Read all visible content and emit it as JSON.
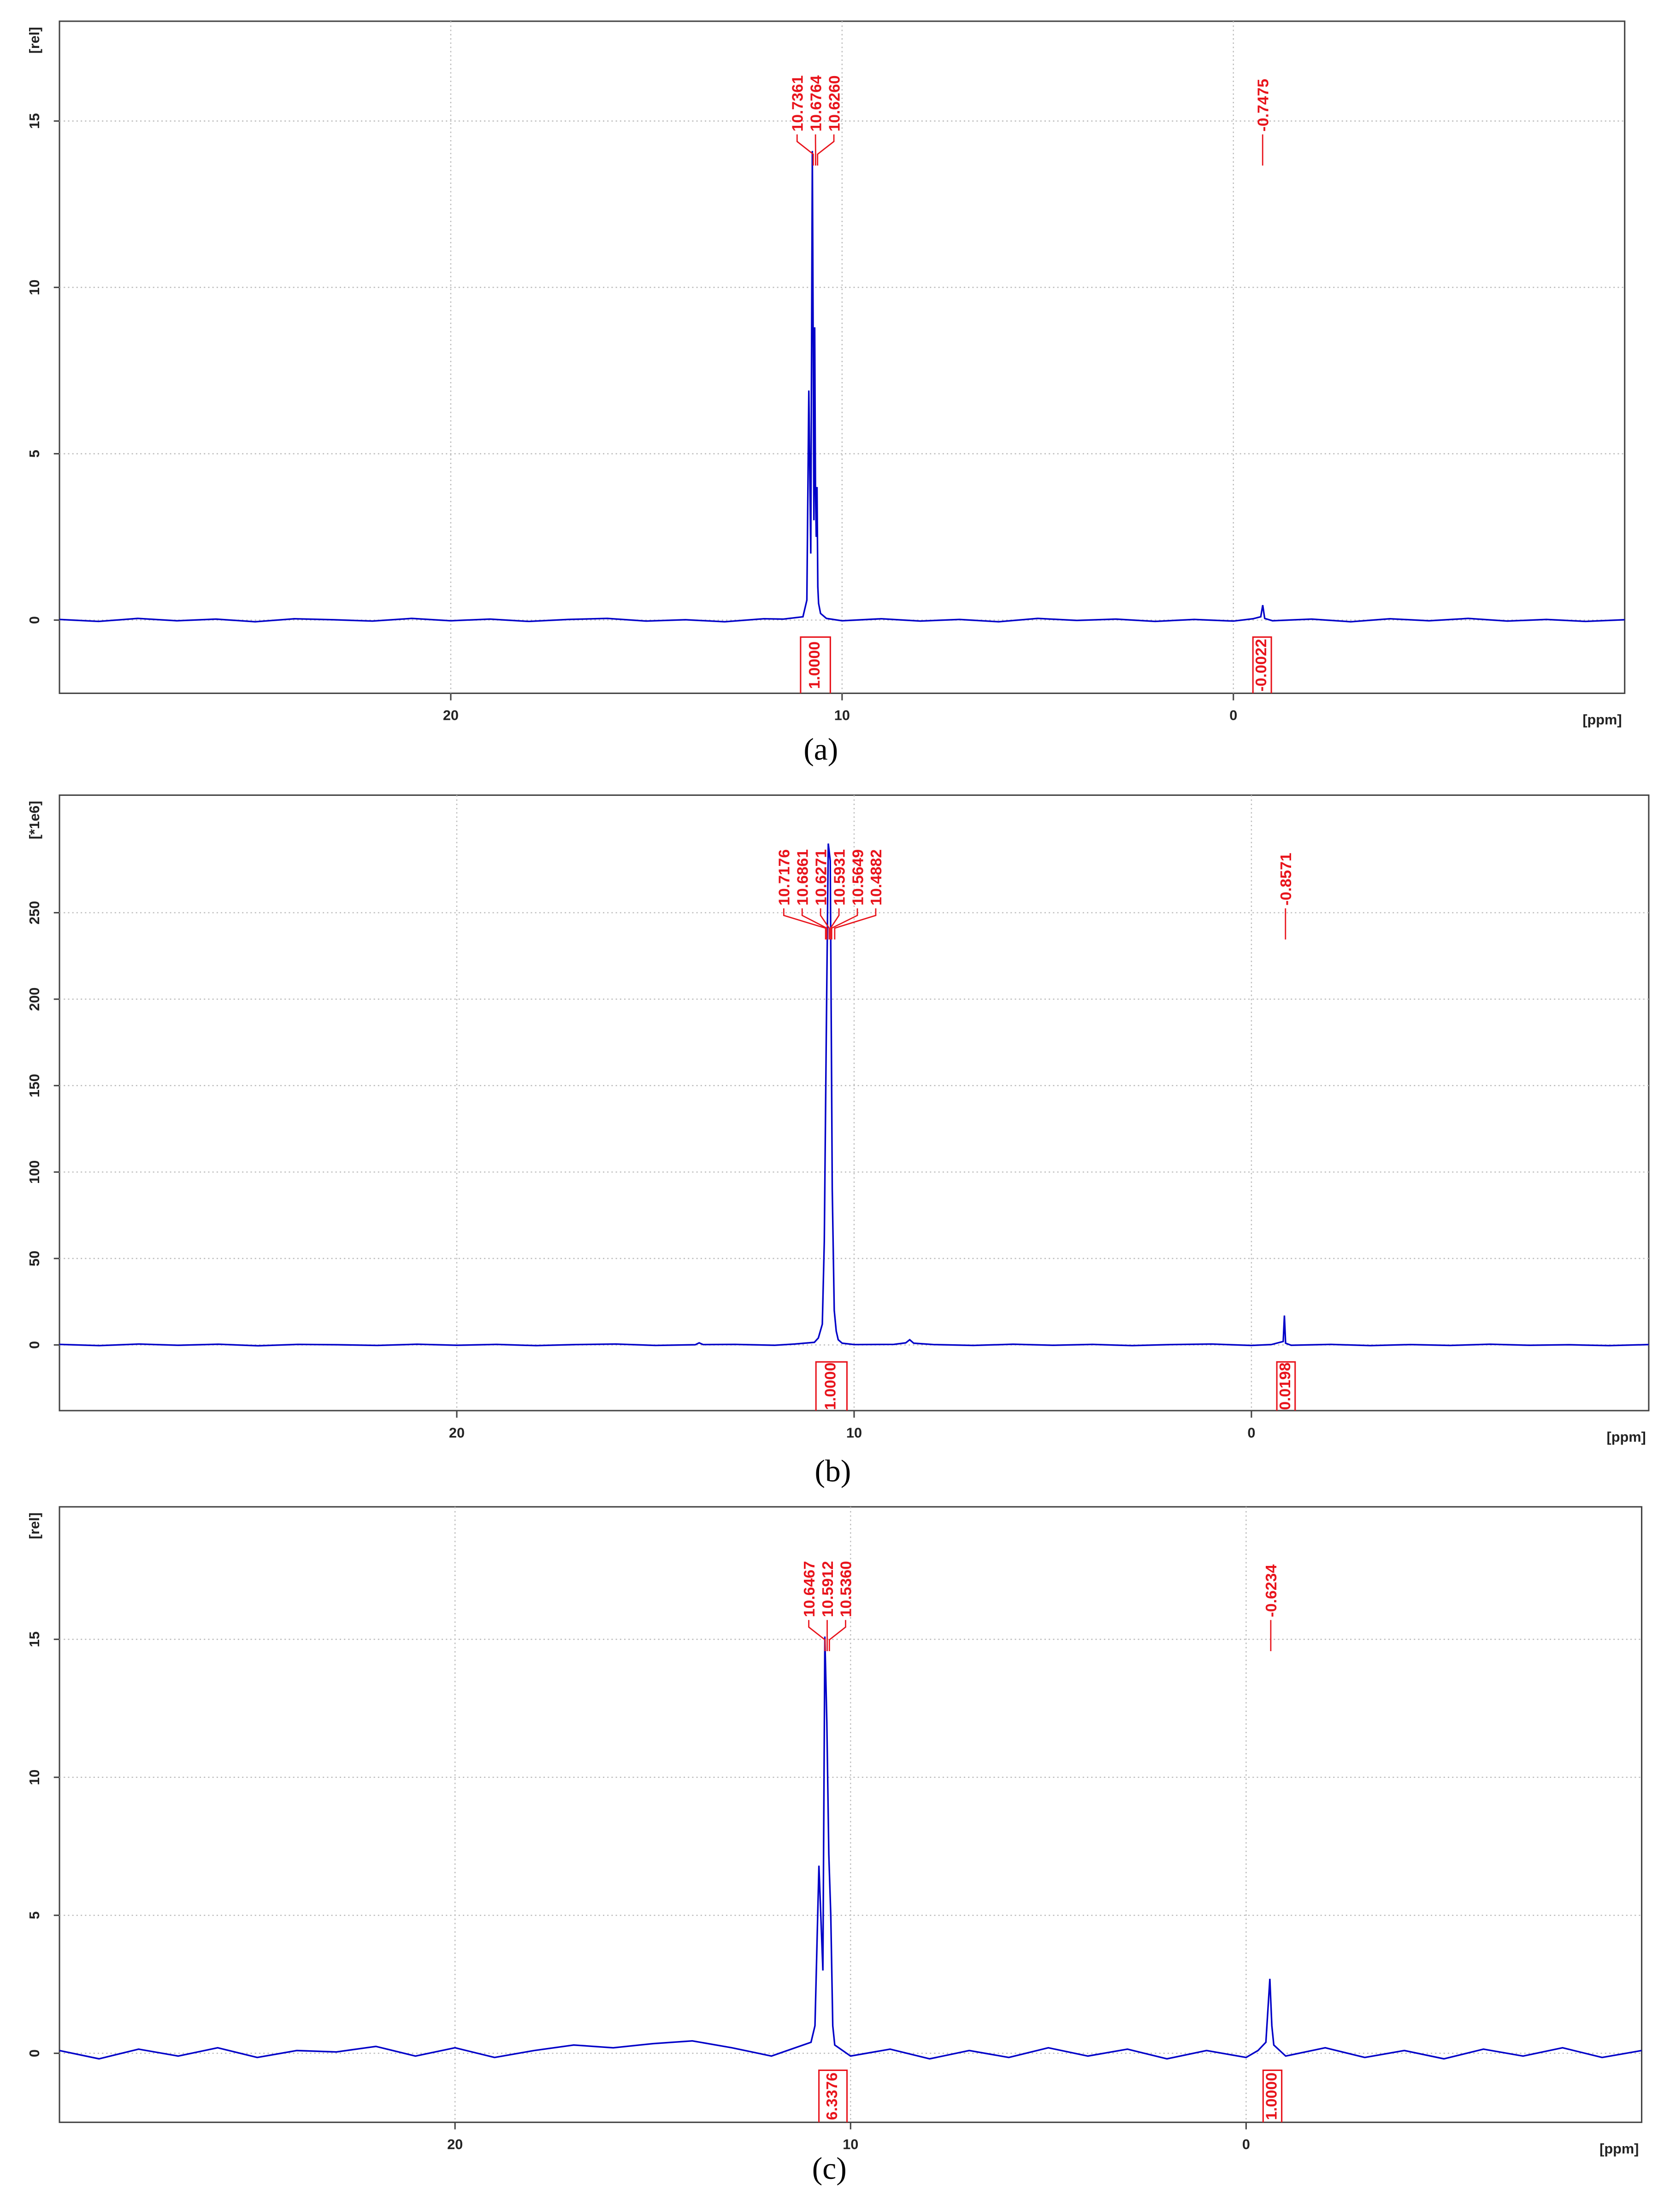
{
  "chart_data": [
    {
      "type": "line",
      "caption": "(a)",
      "y_label": "[rel]",
      "x_label": "[ppm]",
      "color": "#0000c8",
      "peak_color": "#e8141c",
      "xlim": [
        30,
        -10
      ],
      "ylim": [
        -2.2,
        18
      ],
      "xticks": [
        20,
        10,
        0
      ],
      "yticks": [
        0,
        5,
        10,
        15
      ],
      "grid": true,
      "x": [
        30,
        29,
        28,
        27,
        26,
        25,
        24,
        23,
        22,
        21,
        20,
        19,
        18,
        17,
        16,
        15,
        14,
        13,
        12,
        11.5,
        11,
        10.9,
        10.85,
        10.8,
        10.76,
        10.74,
        10.72,
        10.7,
        10.68,
        10.66,
        10.64,
        10.62,
        10.6,
        10.55,
        10.4,
        10,
        9,
        8,
        7,
        6,
        5,
        4,
        3,
        2,
        1,
        0,
        -0.5,
        -0.7,
        -0.75,
        -0.8,
        -1,
        -2,
        -3,
        -4,
        -5,
        -6,
        -7,
        -8,
        -9,
        -10
      ],
      "values": [
        0.02,
        -0.04,
        0.05,
        -0.02,
        0.03,
        -0.05,
        0.04,
        0.01,
        -0.03,
        0.05,
        -0.02,
        0.03,
        -0.04,
        0.02,
        0.05,
        -0.03,
        0.01,
        -0.05,
        0.04,
        0.03,
        0.1,
        0.6,
        6.9,
        2.0,
        14.1,
        8.8,
        3.0,
        8.8,
        4.0,
        2.5,
        4.0,
        1.0,
        0.5,
        0.2,
        0.05,
        -0.02,
        0.04,
        -0.03,
        0.02,
        -0.05,
        0.05,
        -0.01,
        0.03,
        -0.04,
        0.02,
        -0.03,
        0.04,
        0.1,
        0.45,
        0.05,
        -0.02,
        0.03,
        -0.05,
        0.04,
        -0.02,
        0.05,
        -0.03,
        0.02,
        -0.04,
        0.01
      ],
      "peaks": {
        "values": [
          10.7361,
          10.6764,
          10.626,
          -0.7475
        ],
        "value_labels": [
          "10.7361",
          "10.6764",
          "10.6260",
          "-0.7475"
        ]
      },
      "integrals": {
        "values": [
          1,
          -0.0022
        ],
        "value_labels": [
          "1.0000",
          "-0.0022"
        ],
        "ranges": [
          [
            11.06,
            10.3
          ],
          [
            -0.5,
            -0.97
          ]
        ]
      }
    },
    {
      "type": "line",
      "caption": "(b)",
      "y_label": "[*1e6]",
      "x_label": "[ppm]",
      "color": "#0000c8",
      "peak_color": "#e8141c",
      "xlim": [
        30,
        -10
      ],
      "ylim": [
        -38,
        318
      ],
      "xticks": [
        20,
        10,
        0
      ],
      "yticks": [
        0,
        50,
        100,
        150,
        200,
        250
      ],
      "grid": true,
      "x": [
        30,
        29,
        28,
        27,
        26,
        25,
        24,
        23,
        22,
        21,
        20,
        19,
        18,
        17,
        16,
        15,
        14,
        13.9,
        13.8,
        13,
        12,
        11.5,
        11,
        10.9,
        10.8,
        10.75,
        10.7,
        10.65,
        10.6,
        10.55,
        10.5,
        10.45,
        10.4,
        10.3,
        10,
        9,
        8.7,
        8.6,
        8.5,
        8,
        7,
        6,
        5,
        4,
        3,
        2,
        1,
        0,
        -0.5,
        -0.8,
        -0.83,
        -0.86,
        -1,
        -2,
        -3,
        -4,
        -5,
        -6,
        -7,
        -8,
        -9,
        -10
      ],
      "values": [
        0.3,
        -0.4,
        0.5,
        -0.2,
        0.4,
        -0.5,
        0.3,
        0.1,
        -0.3,
        0.4,
        -0.2,
        0.3,
        -0.4,
        0.2,
        0.5,
        -0.3,
        0.1,
        1.2,
        0.2,
        0.3,
        -0.2,
        0.5,
        1.5,
        4,
        12,
        60,
        180,
        290,
        280,
        90,
        20,
        8,
        3,
        1,
        0.2,
        0.3,
        1.2,
        3.0,
        1.0,
        0.2,
        -0.3,
        0.4,
        -0.2,
        0.3,
        -0.4,
        0.2,
        0.5,
        -0.3,
        0.2,
        2,
        17,
        1,
        -0.2,
        0.3,
        -0.4,
        0.2,
        -0.3,
        0.4,
        -0.2,
        0.1,
        -0.4,
        0.2
      ],
      "peaks": {
        "values": [
          10.7176,
          10.6861,
          10.6271,
          10.5931,
          10.5649,
          10.4882,
          -0.8571
        ],
        "value_labels": [
          "10.7176",
          "10.6861",
          "10.6271",
          "10.5931",
          "10.5649",
          "10.4882",
          "-0.8571"
        ]
      },
      "integrals": {
        "values": [
          1,
          0.0198
        ],
        "value_labels": [
          "1.0000",
          "0.0198"
        ],
        "ranges": [
          [
            10.96,
            10.18
          ],
          [
            -0.64,
            -1.1
          ]
        ]
      }
    },
    {
      "type": "line",
      "caption": "(c)",
      "y_label": "[rel]",
      "x_label": "[ppm]",
      "color": "#0000c8",
      "peak_color": "#e8141c",
      "xlim": [
        30,
        -10
      ],
      "ylim": [
        -2.5,
        19.8
      ],
      "xticks": [
        20,
        10,
        0
      ],
      "yticks": [
        0,
        5,
        10,
        15
      ],
      "grid": true,
      "x": [
        30,
        29,
        28,
        27,
        26,
        25,
        24,
        23,
        22,
        21,
        20,
        19,
        18,
        17,
        16,
        15,
        14,
        13,
        12,
        11.5,
        11,
        10.9,
        10.8,
        10.7,
        10.65,
        10.6,
        10.55,
        10.5,
        10.45,
        10.4,
        10.3,
        10,
        9,
        8,
        7,
        6,
        5,
        4,
        3,
        2,
        1,
        0,
        -0.3,
        -0.5,
        -0.6,
        -0.65,
        -0.7,
        -1,
        -2,
        -3,
        -4,
        -5,
        -6,
        -7,
        -8,
        -9,
        -10
      ],
      "values": [
        0.1,
        -0.2,
        0.15,
        -0.1,
        0.2,
        -0.15,
        0.1,
        0.05,
        0.25,
        -0.1,
        0.2,
        -0.15,
        0.1,
        0.3,
        0.2,
        0.35,
        0.45,
        0.2,
        -0.1,
        0.15,
        0.4,
        1.0,
        6.8,
        3.0,
        15.1,
        12.0,
        7.2,
        5.0,
        1.0,
        0.3,
        0.2,
        -0.1,
        0.15,
        -0.2,
        0.1,
        -0.15,
        0.2,
        -0.1,
        0.15,
        -0.2,
        0.1,
        -0.15,
        0.1,
        0.4,
        2.7,
        1.0,
        0.3,
        -0.1,
        0.2,
        -0.15,
        0.1,
        -0.2,
        0.15,
        -0.1,
        0.2,
        -0.15,
        0.1
      ],
      "peaks": {
        "values": [
          10.6467,
          10.5912,
          10.536,
          -0.6234
        ],
        "value_labels": [
          "10.6467",
          "10.5912",
          "10.5360",
          "-0.6234"
        ]
      },
      "integrals": {
        "values": [
          6.3376,
          1
        ],
        "value_labels": [
          "6.3376",
          "1.0000"
        ],
        "ranges": [
          [
            10.8,
            10.09
          ],
          [
            -0.43,
            -0.9
          ]
        ]
      }
    }
  ]
}
